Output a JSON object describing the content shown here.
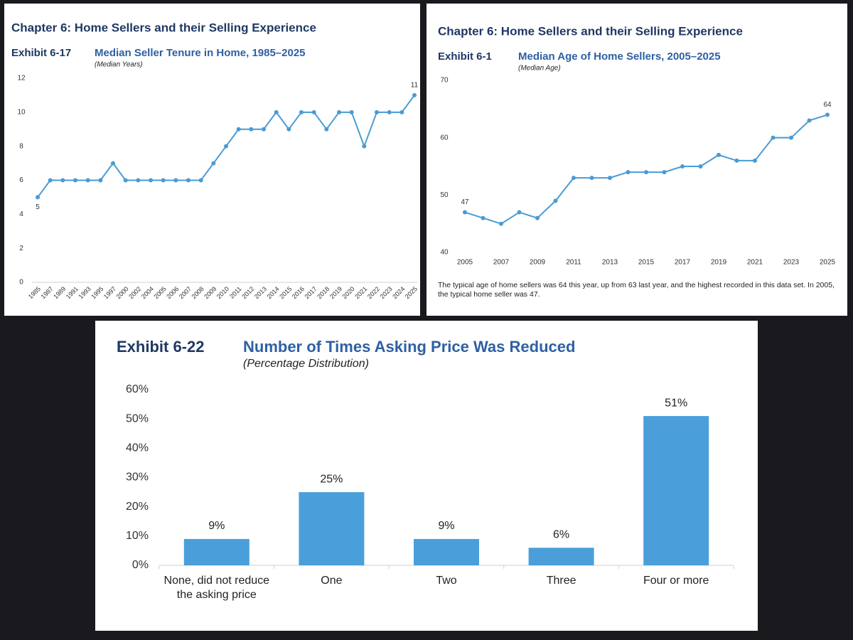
{
  "chart_data": [
    {
      "type": "line",
      "header": "Chapter 6: Home Sellers and their Selling Experience",
      "exhibit": "Exhibit 6-17",
      "title": "Median Seller Tenure in Home, 1985–2025",
      "subtitle": "(Median Years)",
      "categories": [
        "1985",
        "1987",
        "1989",
        "1991",
        "1993",
        "1995",
        "1997",
        "2000",
        "2002",
        "2004",
        "2005",
        "2006",
        "2007",
        "2008",
        "2009",
        "2010",
        "2011",
        "2012",
        "2013",
        "2014",
        "2015",
        "2016",
        "2017",
        "2018",
        "2019",
        "2020",
        "2021",
        "2022",
        "2023",
        "2024",
        "2025"
      ],
      "values": [
        5,
        6,
        6,
        6,
        6,
        6,
        7,
        6,
        6,
        6,
        6,
        6,
        6,
        6,
        7,
        8,
        9,
        9,
        9,
        10,
        9,
        10,
        10,
        9,
        10,
        10,
        8,
        10,
        10,
        10,
        11
      ],
      "value_labels": [
        "5",
        null,
        null,
        null,
        null,
        null,
        null,
        null,
        null,
        null,
        null,
        null,
        null,
        null,
        null,
        null,
        null,
        null,
        null,
        null,
        null,
        null,
        null,
        null,
        null,
        null,
        null,
        null,
        null,
        null,
        "11"
      ],
      "color": "#4a9bd4",
      "ylim": [
        0,
        12
      ],
      "yticks": [
        0,
        2,
        4,
        6,
        8,
        10,
        12
      ],
      "grid": false
    },
    {
      "type": "line",
      "header": "Chapter 6: Home Sellers and their Selling Experience",
      "exhibit": "Exhibit 6-1",
      "title": "Median Age of Home Sellers, 2005–2025",
      "subtitle": "(Median Age)",
      "x": [
        2005,
        2006,
        2007,
        2008,
        2009,
        2010,
        2011,
        2012,
        2013,
        2014,
        2015,
        2016,
        2017,
        2018,
        2019,
        2020,
        2021,
        2022,
        2023,
        2024,
        2025
      ],
      "values": [
        47,
        46,
        45,
        47,
        46,
        49,
        53,
        53,
        53,
        54,
        54,
        54,
        55,
        55,
        57,
        56,
        56,
        60,
        60,
        63,
        64
      ],
      "value_labels": [
        "47",
        null,
        null,
        null,
        null,
        null,
        null,
        null,
        null,
        null,
        null,
        null,
        null,
        null,
        null,
        null,
        null,
        null,
        null,
        null,
        "64"
      ],
      "color": "#4a9bd4",
      "xlim": [
        2005,
        2025
      ],
      "xticks": [
        2005,
        2007,
        2009,
        2011,
        2013,
        2015,
        2017,
        2019,
        2021,
        2023,
        2025
      ],
      "ylim": [
        40,
        70
      ],
      "yticks": [
        40,
        50,
        60,
        70
      ],
      "grid": false,
      "note": "The typical age of home sellers was 64 this year, up from 63 last year, and the highest recorded in this data set. In 2005, the typical home seller was 47."
    },
    {
      "type": "bar",
      "exhibit": "Exhibit 6-22",
      "title": "Number of Times Asking Price Was Reduced",
      "subtitle": "(Percentage Distribution)",
      "categories": [
        "None, did not reduce the asking price",
        "One",
        "Two",
        "Three",
        "Four or more"
      ],
      "values": [
        9,
        25,
        9,
        6,
        51
      ],
      "value_labels": [
        "9%",
        "25%",
        "9%",
        "6%",
        "51%"
      ],
      "color": "#4a9fda",
      "ylim": [
        0,
        60
      ],
      "yticks": [
        {
          "value": 0,
          "label": "0%"
        },
        {
          "value": 10,
          "label": "10%"
        },
        {
          "value": 20,
          "label": "20%"
        },
        {
          "value": 30,
          "label": "30%"
        },
        {
          "value": 40,
          "label": "40%"
        },
        {
          "value": 50,
          "label": "50%"
        },
        {
          "value": 60,
          "label": "60%"
        }
      ],
      "grid": false
    }
  ]
}
